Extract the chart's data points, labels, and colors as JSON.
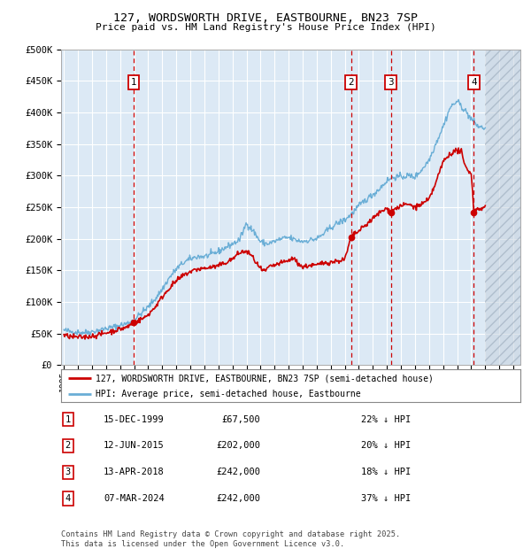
{
  "title_line1": "127, WORDSWORTH DRIVE, EASTBOURNE, BN23 7SP",
  "title_line2": "Price paid vs. HM Land Registry's House Price Index (HPI)",
  "plot_bg_color": "#dce9f5",
  "hpi_line_color": "#6aaed6",
  "price_line_color": "#cc0000",
  "grid_color": "#ffffff",
  "vline_color": "#cc0000",
  "ylim": [
    0,
    500000
  ],
  "yticks": [
    0,
    50000,
    100000,
    150000,
    200000,
    250000,
    300000,
    350000,
    400000,
    450000,
    500000
  ],
  "ytick_labels": [
    "£0",
    "£50K",
    "£100K",
    "£150K",
    "£200K",
    "£250K",
    "£300K",
    "£350K",
    "£400K",
    "£450K",
    "£500K"
  ],
  "xlim_start": 1994.8,
  "xlim_end": 2027.5,
  "xticks": [
    1995,
    1996,
    1997,
    1998,
    1999,
    2000,
    2001,
    2002,
    2003,
    2004,
    2005,
    2006,
    2007,
    2008,
    2009,
    2010,
    2011,
    2012,
    2013,
    2014,
    2015,
    2016,
    2017,
    2018,
    2019,
    2020,
    2021,
    2022,
    2023,
    2024,
    2025,
    2026,
    2027
  ],
  "sale_events": [
    {
      "num": 1,
      "year": 1999.958,
      "price": 67500,
      "label": "15-DEC-1999",
      "price_str": "£67,500",
      "pct": "22%",
      "dir": "↓"
    },
    {
      "num": 2,
      "year": 2015.44,
      "price": 202000,
      "label": "12-JUN-2015",
      "price_str": "£202,000",
      "pct": "20%",
      "dir": "↓"
    },
    {
      "num": 3,
      "year": 2018.28,
      "price": 242000,
      "label": "13-APR-2018",
      "price_str": "£242,000",
      "pct": "18%",
      "dir": "↓"
    },
    {
      "num": 4,
      "year": 2024.18,
      "price": 242000,
      "label": "07-MAR-2024",
      "price_str": "£242,000",
      "pct": "37%",
      "dir": "↓"
    }
  ],
  "legend_line1": "127, WORDSWORTH DRIVE, EASTBOURNE, BN23 7SP (semi-detached house)",
  "legend_line2": "HPI: Average price, semi-detached house, Eastbourne",
  "footnote": "Contains HM Land Registry data © Crown copyright and database right 2025.\nThis data is licensed under the Open Government Licence v3.0.",
  "hatch_start": 2025.0,
  "hpi_anchors": [
    [
      1995.0,
      55000
    ],
    [
      1995.5,
      53000
    ],
    [
      1996.0,
      52000
    ],
    [
      1996.5,
      51500
    ],
    [
      1997.0,
      53000
    ],
    [
      1997.5,
      55000
    ],
    [
      1998.0,
      58000
    ],
    [
      1998.5,
      60000
    ],
    [
      1999.0,
      63000
    ],
    [
      1999.5,
      66000
    ],
    [
      2000.0,
      72000
    ],
    [
      2000.5,
      82000
    ],
    [
      2001.0,
      92000
    ],
    [
      2001.5,
      105000
    ],
    [
      2002.0,
      120000
    ],
    [
      2002.5,
      138000
    ],
    [
      2003.0,
      152000
    ],
    [
      2003.5,
      162000
    ],
    [
      2004.0,
      168000
    ],
    [
      2004.5,
      172000
    ],
    [
      2005.0,
      172000
    ],
    [
      2005.5,
      175000
    ],
    [
      2006.0,
      180000
    ],
    [
      2006.5,
      186000
    ],
    [
      2007.0,
      192000
    ],
    [
      2007.5,
      198000
    ],
    [
      2008.0,
      225000
    ],
    [
      2008.5,
      212000
    ],
    [
      2009.0,
      195000
    ],
    [
      2009.5,
      192000
    ],
    [
      2010.0,
      196000
    ],
    [
      2010.5,
      200000
    ],
    [
      2011.0,
      202000
    ],
    [
      2011.5,
      198000
    ],
    [
      2012.0,
      196000
    ],
    [
      2012.5,
      198000
    ],
    [
      2013.0,
      200000
    ],
    [
      2013.5,
      208000
    ],
    [
      2014.0,
      218000
    ],
    [
      2014.5,
      225000
    ],
    [
      2015.0,
      230000
    ],
    [
      2015.5,
      240000
    ],
    [
      2016.0,
      252000
    ],
    [
      2016.5,
      262000
    ],
    [
      2017.0,
      270000
    ],
    [
      2017.5,
      280000
    ],
    [
      2018.0,
      292000
    ],
    [
      2018.5,
      298000
    ],
    [
      2019.0,
      298000
    ],
    [
      2019.5,
      300000
    ],
    [
      2020.0,
      298000
    ],
    [
      2020.5,
      310000
    ],
    [
      2021.0,
      325000
    ],
    [
      2021.5,
      352000
    ],
    [
      2022.0,
      378000
    ],
    [
      2022.5,
      408000
    ],
    [
      2023.0,
      418000
    ],
    [
      2023.5,
      405000
    ],
    [
      2024.0,
      390000
    ],
    [
      2024.5,
      378000
    ],
    [
      2025.0,
      375000
    ]
  ],
  "price_anchors": [
    [
      1995.0,
      47000
    ],
    [
      1995.5,
      45000
    ],
    [
      1996.0,
      44000
    ],
    [
      1996.5,
      44500
    ],
    [
      1997.0,
      46000
    ],
    [
      1997.5,
      48000
    ],
    [
      1998.0,
      51000
    ],
    [
      1998.5,
      54000
    ],
    [
      1999.0,
      57000
    ],
    [
      1999.5,
      60000
    ],
    [
      1999.958,
      67500
    ],
    [
      2000.3,
      70000
    ],
    [
      2000.8,
      76000
    ],
    [
      2001.0,
      80000
    ],
    [
      2001.5,
      92000
    ],
    [
      2002.0,
      108000
    ],
    [
      2002.5,
      122000
    ],
    [
      2003.0,
      133000
    ],
    [
      2003.5,
      142000
    ],
    [
      2004.0,
      148000
    ],
    [
      2004.5,
      152000
    ],
    [
      2005.0,
      153000
    ],
    [
      2005.5,
      155000
    ],
    [
      2006.0,
      157000
    ],
    [
      2006.5,
      162000
    ],
    [
      2007.0,
      168000
    ],
    [
      2007.5,
      178000
    ],
    [
      2008.0,
      180000
    ],
    [
      2008.3,
      175000
    ],
    [
      2008.7,
      162000
    ],
    [
      2009.0,
      152000
    ],
    [
      2009.3,
      148000
    ],
    [
      2009.6,
      155000
    ],
    [
      2010.0,
      158000
    ],
    [
      2010.5,
      162000
    ],
    [
      2011.0,
      165000
    ],
    [
      2011.3,
      170000
    ],
    [
      2011.6,
      163000
    ],
    [
      2012.0,
      155000
    ],
    [
      2012.5,
      158000
    ],
    [
      2013.0,
      158000
    ],
    [
      2013.5,
      162000
    ],
    [
      2014.0,
      163000
    ],
    [
      2014.5,
      165000
    ],
    [
      2015.0,
      167000
    ],
    [
      2015.44,
      202000
    ],
    [
      2015.7,
      208000
    ],
    [
      2016.0,
      212000
    ],
    [
      2016.5,
      222000
    ],
    [
      2017.0,
      232000
    ],
    [
      2017.5,
      242000
    ],
    [
      2018.0,
      248000
    ],
    [
      2018.28,
      242000
    ],
    [
      2018.6,
      248000
    ],
    [
      2019.0,
      252000
    ],
    [
      2019.5,
      255000
    ],
    [
      2020.0,
      250000
    ],
    [
      2020.5,
      255000
    ],
    [
      2021.0,
      262000
    ],
    [
      2021.5,
      290000
    ],
    [
      2022.0,
      322000
    ],
    [
      2022.5,
      335000
    ],
    [
      2023.0,
      340000
    ],
    [
      2023.3,
      338000
    ],
    [
      2023.5,
      318000
    ],
    [
      2023.8,
      308000
    ],
    [
      2024.0,
      305000
    ],
    [
      2024.18,
      242000
    ],
    [
      2024.4,
      248000
    ],
    [
      2024.7,
      248000
    ],
    [
      2025.0,
      250000
    ]
  ]
}
